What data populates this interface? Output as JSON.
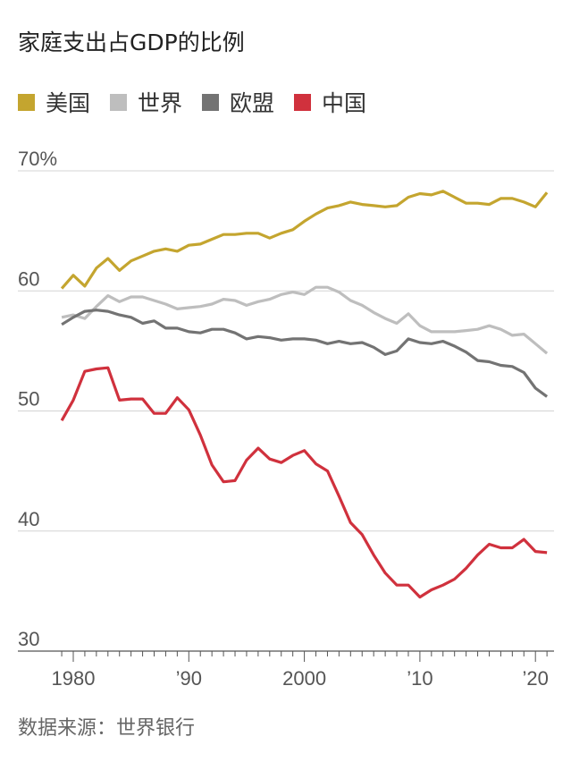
{
  "chart_data": {
    "type": "line",
    "title": "家庭支出占GDP的比例",
    "source": "数据来源：世界银行",
    "xlabel": "",
    "ylabel": "",
    "ylim": [
      30,
      70
    ],
    "xlim": [
      1979,
      2021
    ],
    "y_ticks": [
      {
        "v": 70,
        "label": "70%"
      },
      {
        "v": 60,
        "label": "60"
      },
      {
        "v": 50,
        "label": "50"
      },
      {
        "v": 40,
        "label": "40"
      },
      {
        "v": 30,
        "label": "30"
      }
    ],
    "x_ticks": [
      {
        "v": 1980,
        "label": "1980"
      },
      {
        "v": 1990,
        "label": "’90"
      },
      {
        "v": 2000,
        "label": "2000"
      },
      {
        "v": 2010,
        "label": "’10"
      },
      {
        "v": 2020,
        "label": "’20"
      }
    ],
    "grid": true,
    "legend_position": "top",
    "x": [
      1979,
      1980,
      1981,
      1982,
      1983,
      1984,
      1985,
      1986,
      1987,
      1988,
      1989,
      1990,
      1991,
      1992,
      1993,
      1994,
      1995,
      1996,
      1997,
      1998,
      1999,
      2000,
      2001,
      2002,
      2003,
      2004,
      2005,
      2006,
      2007,
      2008,
      2009,
      2010,
      2011,
      2012,
      2013,
      2014,
      2015,
      2016,
      2017,
      2018,
      2019,
      2020,
      2021
    ],
    "series": [
      {
        "name": "美国",
        "color": "#c4a52f",
        "values": [
          60.2,
          61.3,
          60.4,
          61.9,
          62.7,
          61.7,
          62.5,
          62.9,
          63.3,
          63.5,
          63.3,
          63.8,
          63.9,
          64.3,
          64.7,
          64.7,
          64.8,
          64.8,
          64.4,
          64.8,
          65.1,
          65.8,
          66.4,
          66.9,
          67.1,
          67.4,
          67.2,
          67.1,
          67.0,
          67.1,
          67.8,
          68.1,
          68.0,
          68.3,
          67.8,
          67.3,
          67.3,
          67.2,
          67.7,
          67.7,
          67.4,
          67.0,
          68.2
        ]
      },
      {
        "name": "世界",
        "color": "#bebebe",
        "values": [
          57.8,
          58.0,
          57.7,
          58.7,
          59.6,
          59.1,
          59.5,
          59.5,
          59.2,
          58.9,
          58.5,
          58.6,
          58.7,
          58.9,
          59.3,
          59.2,
          58.8,
          59.1,
          59.3,
          59.7,
          59.9,
          59.7,
          60.3,
          60.3,
          59.9,
          59.2,
          58.8,
          58.2,
          57.7,
          57.3,
          58.1,
          57.1,
          56.6,
          56.6,
          56.6,
          56.7,
          56.8,
          57.1,
          56.8,
          56.3,
          56.4,
          55.6,
          54.8
        ]
      },
      {
        "name": "欧盟",
        "color": "#737373",
        "values": [
          57.2,
          57.8,
          58.3,
          58.4,
          58.3,
          58.0,
          57.8,
          57.3,
          57.5,
          56.9,
          56.9,
          56.6,
          56.5,
          56.8,
          56.8,
          56.5,
          56.0,
          56.2,
          56.1,
          55.9,
          56.0,
          56.0,
          55.9,
          55.6,
          55.8,
          55.6,
          55.7,
          55.3,
          54.7,
          55.0,
          56.0,
          55.7,
          55.6,
          55.8,
          55.4,
          54.9,
          54.2,
          54.1,
          53.8,
          53.7,
          53.2,
          51.9,
          51.2
        ]
      },
      {
        "name": "中国",
        "color": "#d0313d",
        "values": [
          49.2,
          50.9,
          53.3,
          53.5,
          53.6,
          50.9,
          51.0,
          51.0,
          49.8,
          49.8,
          51.1,
          50.1,
          48.0,
          45.5,
          44.1,
          44.2,
          45.9,
          46.9,
          46.0,
          45.7,
          46.3,
          46.7,
          45.6,
          45.0,
          42.9,
          40.7,
          39.7,
          38.0,
          36.5,
          35.5,
          35.5,
          34.5,
          35.1,
          35.5,
          36.0,
          36.9,
          38.0,
          38.9,
          38.6,
          38.6,
          39.3,
          38.3,
          38.2
        ]
      }
    ]
  }
}
